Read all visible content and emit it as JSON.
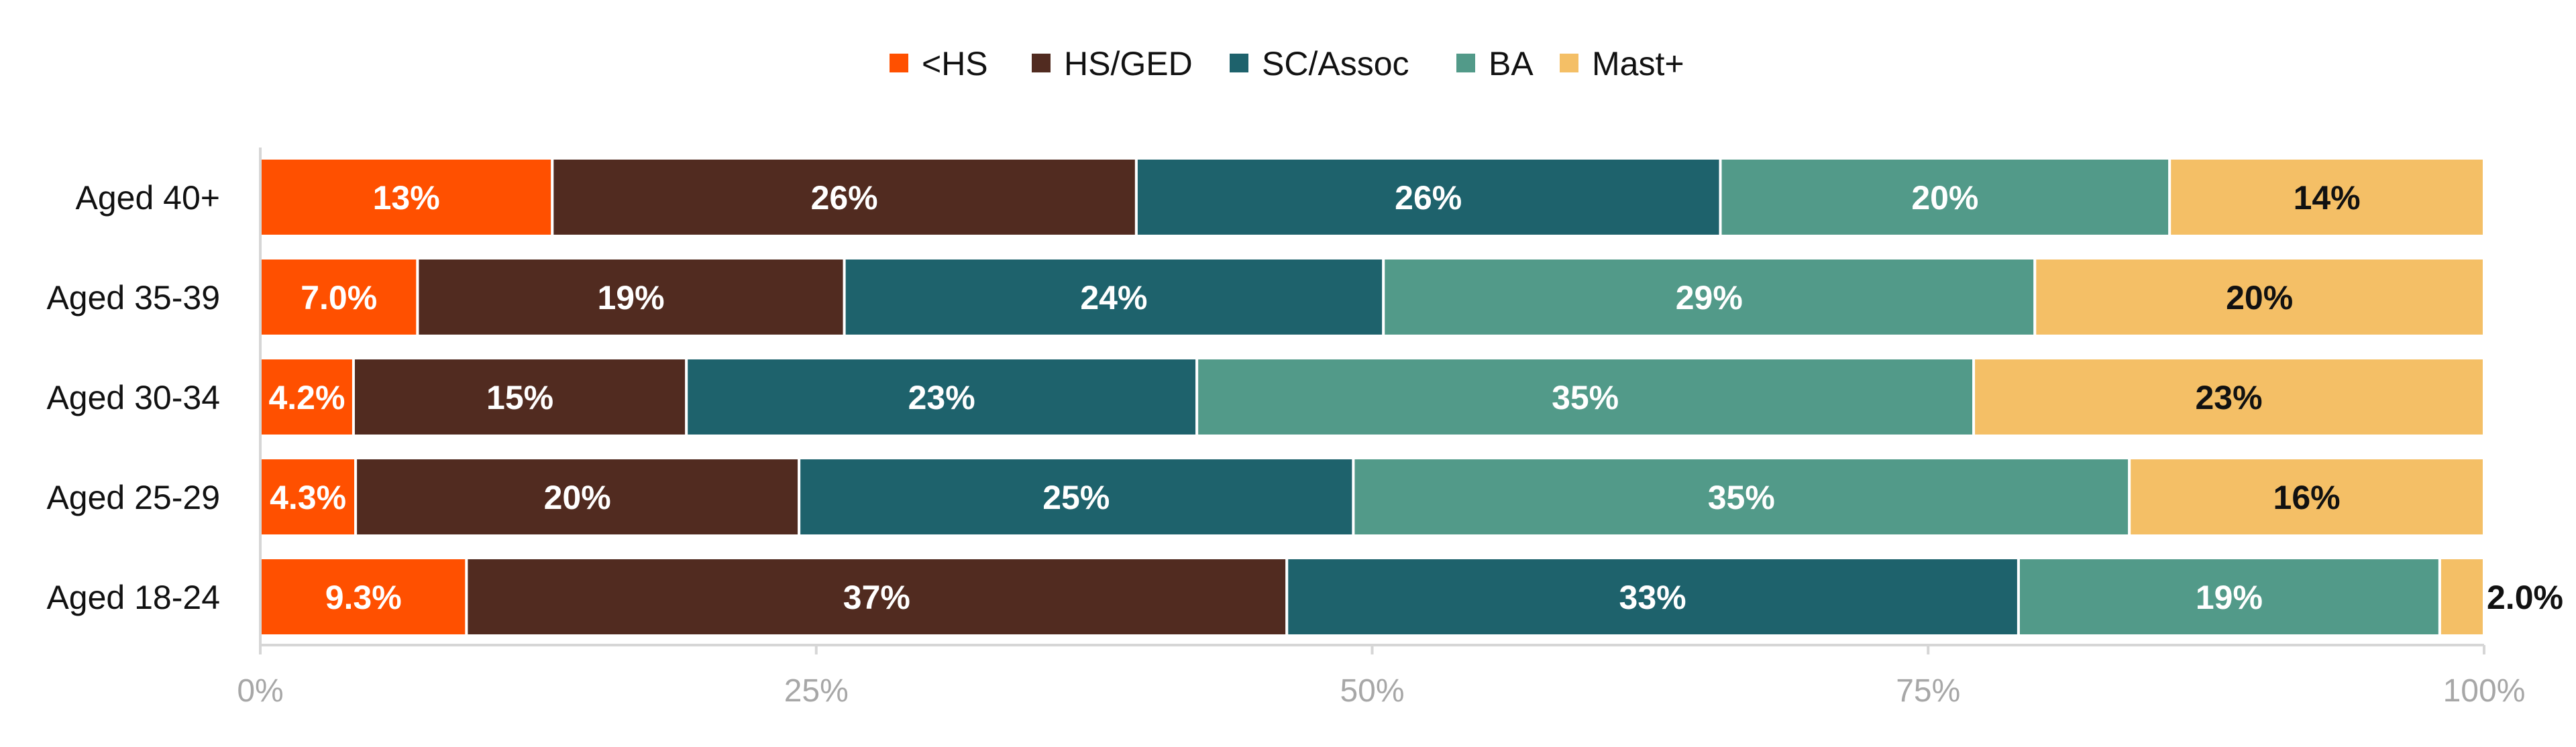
{
  "chart_data": {
    "type": "bar",
    "orientation": "horizontal",
    "stacked": "percent",
    "title": "",
    "xlabel": "",
    "ylabel": "",
    "xlim": [
      0,
      100
    ],
    "x_ticks": [
      0,
      25,
      50,
      75,
      100
    ],
    "x_tick_labels": [
      "0%",
      "25%",
      "50%",
      "75%",
      "100%"
    ],
    "grid": false,
    "legend_position": "top-center",
    "categories": [
      "Aged 40+",
      "Aged 35-39",
      "Aged 30-34",
      "Aged 25-29",
      "Aged 18-24"
    ],
    "series": [
      {
        "name": "<HS",
        "color": "#FF5000",
        "label_color": "#FFFFFF",
        "values": [
          13,
          7.0,
          4.2,
          4.3,
          9.3
        ],
        "labels": [
          "13%",
          "7.0%",
          "4.2%",
          "4.3%",
          "9.3%"
        ]
      },
      {
        "name": "HS/GED",
        "color": "#512B20",
        "label_color": "#FFFFFF",
        "values": [
          26,
          19,
          15,
          20,
          37
        ],
        "labels": [
          "26%",
          "19%",
          "15%",
          "20%",
          "37%"
        ]
      },
      {
        "name": "SC/Assoc",
        "color": "#1E626C",
        "label_color": "#FFFFFF",
        "values": [
          26,
          24,
          23,
          25,
          33
        ],
        "labels": [
          "26%",
          "24%",
          "23%",
          "25%",
          "33%"
        ]
      },
      {
        "name": "BA",
        "color": "#529A89",
        "label_color": "#FFFFFF",
        "values": [
          20,
          29,
          35,
          35,
          19
        ],
        "labels": [
          "20%",
          "29%",
          "35%",
          "35%",
          "19%"
        ]
      },
      {
        "name": "Mast+",
        "color": "#F4BF66",
        "label_color": "#111111",
        "values": [
          14,
          20,
          23,
          16,
          2.0
        ],
        "labels": [
          "14%",
          "20%",
          "23%",
          "16%",
          "2.0%"
        ]
      }
    ]
  }
}
